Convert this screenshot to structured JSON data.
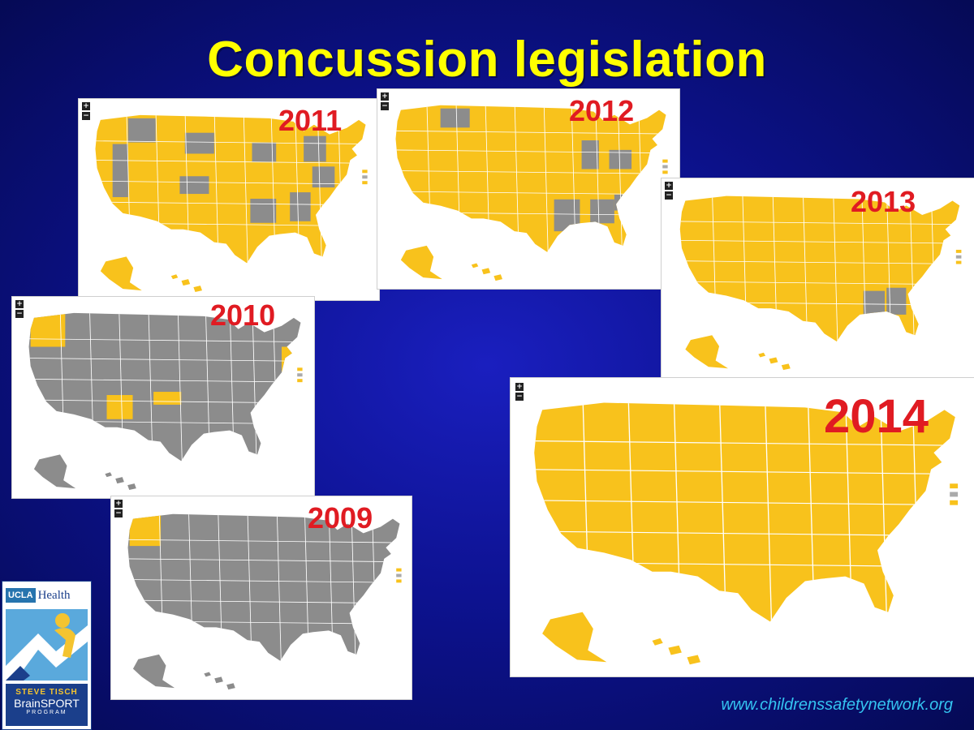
{
  "title": "Concussion legislation",
  "colors": {
    "background": "#0d1290",
    "title": "#ffff00",
    "year_label": "#e01b22",
    "law_passed": "#f8c21c",
    "no_law": "#8c8c8c",
    "url": "#34c3f0"
  },
  "maps": [
    {
      "id": "map-2009",
      "year_label": "2009",
      "zoom_in": "+",
      "zoom_out": "−"
    },
    {
      "id": "map-2010",
      "year_label": "2010",
      "zoom_in": "+",
      "zoom_out": "−"
    },
    {
      "id": "map-2011",
      "year_label": "2011",
      "zoom_in": "+",
      "zoom_out": "−"
    },
    {
      "id": "map-2012",
      "year_label": "2012",
      "zoom_in": "+",
      "zoom_out": "−"
    },
    {
      "id": "map-2013",
      "year_label": "2013",
      "zoom_in": "+",
      "zoom_out": "−"
    },
    {
      "id": "map-2014",
      "year_label": "2014",
      "zoom_in": "+",
      "zoom_out": "−"
    }
  ],
  "logo": {
    "ucla": "UCLA",
    "health": "Health",
    "line1": "STEVE TISCH",
    "line2": "BrainSPORT",
    "line3": "PROGRAM"
  },
  "footer": {
    "url": "www.childrenssafetynetwork.org"
  }
}
